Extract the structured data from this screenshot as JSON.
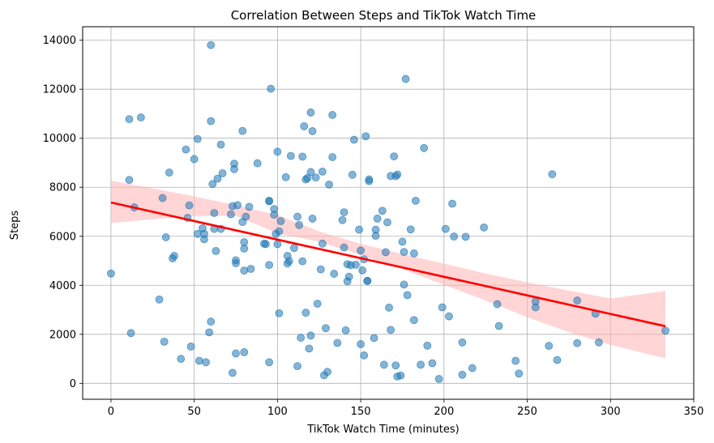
{
  "chart_data": {
    "type": "scatter",
    "title": "Correlation Between Steps and TikTok Watch Time",
    "xlabel": "TikTok Watch Time (minutes)",
    "ylabel": "Steps",
    "xlim": [
      -17,
      350
    ],
    "ylim": [
      -650,
      14550
    ],
    "xticks": [
      0,
      50,
      100,
      150,
      200,
      250,
      300,
      350
    ],
    "yticks": [
      0,
      2000,
      4000,
      6000,
      8000,
      10000,
      12000,
      14000
    ],
    "grid": true,
    "colors": {
      "points": "#1f77b4",
      "regression": "#ff0000",
      "band": "#ffb3b3"
    },
    "points": [
      [
        0,
        4480
      ],
      [
        11,
        8300
      ],
      [
        11,
        10780
      ],
      [
        12,
        2050
      ],
      [
        14,
        7180
      ],
      [
        18,
        10850
      ],
      [
        29,
        3420
      ],
      [
        31,
        7560
      ],
      [
        32,
        1700
      ],
      [
        33,
        5960
      ],
      [
        35,
        8600
      ],
      [
        37,
        5100
      ],
      [
        38,
        5200
      ],
      [
        42,
        1000
      ],
      [
        45,
        9540
      ],
      [
        46,
        6750
      ],
      [
        47,
        7260
      ],
      [
        48,
        1500
      ],
      [
        50,
        9150
      ],
      [
        52,
        6100
      ],
      [
        52,
        9970
      ],
      [
        53,
        920
      ],
      [
        55,
        6330
      ],
      [
        56,
        5880
      ],
      [
        56,
        6100
      ],
      [
        57,
        860
      ],
      [
        59,
        2080
      ],
      [
        60,
        2520
      ],
      [
        60,
        10700
      ],
      [
        60,
        13800
      ],
      [
        61,
        8130
      ],
      [
        62,
        6950
      ],
      [
        62,
        6300
      ],
      [
        63,
        5400
      ],
      [
        64,
        8350
      ],
      [
        66,
        6300
      ],
      [
        66,
        9740
      ],
      [
        67,
        8570
      ],
      [
        72,
        6900
      ],
      [
        73,
        7230
      ],
      [
        73,
        430
      ],
      [
        74,
        8960
      ],
      [
        74,
        8740
      ],
      [
        75,
        4900
      ],
      [
        75,
        5020
      ],
      [
        75,
        1220
      ],
      [
        76,
        7270
      ],
      [
        79,
        6580
      ],
      [
        79,
        10300
      ],
      [
        80,
        5500
      ],
      [
        80,
        4600
      ],
      [
        80,
        1270
      ],
      [
        80,
        5760
      ],
      [
        81,
        6800
      ],
      [
        83,
        7200
      ],
      [
        84,
        4670
      ],
      [
        88,
        8980
      ],
      [
        92,
        5700
      ],
      [
        93,
        5680
      ],
      [
        95,
        7450
      ],
      [
        95,
        7430
      ],
      [
        95,
        4830
      ],
      [
        95,
        860
      ],
      [
        96,
        12020
      ],
      [
        98,
        7110
      ],
      [
        98,
        6880
      ],
      [
        99,
        6100
      ],
      [
        100,
        9450
      ],
      [
        100,
        5680
      ],
      [
        101,
        6200
      ],
      [
        101,
        2860
      ],
      [
        102,
        6620
      ],
      [
        105,
        8410
      ],
      [
        106,
        4890
      ],
      [
        106,
        5200
      ],
      [
        107,
        4990
      ],
      [
        108,
        9280
      ],
      [
        110,
        5520
      ],
      [
        112,
        700
      ],
      [
        112,
        6800
      ],
      [
        113,
        6460
      ],
      [
        114,
        1860
      ],
      [
        115,
        9250
      ],
      [
        115,
        4980
      ],
      [
        116,
        10490
      ],
      [
        117,
        8320
      ],
      [
        117,
        2880
      ],
      [
        118,
        8380
      ],
      [
        119,
        1420
      ],
      [
        120,
        8620
      ],
      [
        120,
        11050
      ],
      [
        120,
        1950
      ],
      [
        121,
        10290
      ],
      [
        121,
        6720
      ],
      [
        123,
        8400
      ],
      [
        124,
        3250
      ],
      [
        126,
        4650
      ],
      [
        127,
        5700
      ],
      [
        127,
        8640
      ],
      [
        128,
        330
      ],
      [
        129,
        2250
      ],
      [
        130,
        470
      ],
      [
        131,
        8110
      ],
      [
        133,
        9230
      ],
      [
        133,
        10950
      ],
      [
        134,
        4470
      ],
      [
        136,
        1650
      ],
      [
        139,
        6660
      ],
      [
        140,
        6980
      ],
      [
        140,
        5540
      ],
      [
        141,
        2160
      ],
      [
        142,
        4860
      ],
      [
        142,
        4160
      ],
      [
        143,
        4350
      ],
      [
        144,
        4820
      ],
      [
        145,
        8510
      ],
      [
        146,
        9940
      ],
      [
        147,
        4840
      ],
      [
        149,
        6270
      ],
      [
        150,
        1600
      ],
      [
        150,
        5420
      ],
      [
        151,
        4610
      ],
      [
        152,
        5060
      ],
      [
        152,
        1140
      ],
      [
        153,
        10080
      ],
      [
        154,
        4180
      ],
      [
        154,
        4180
      ],
      [
        155,
        8320
      ],
      [
        155,
        8250
      ],
      [
        158,
        1850
      ],
      [
        159,
        6020
      ],
      [
        159,
        6270
      ],
      [
        160,
        6720
      ],
      [
        163,
        7040
      ],
      [
        164,
        760
      ],
      [
        165,
        5350
      ],
      [
        166,
        6570
      ],
      [
        167,
        3090
      ],
      [
        168,
        2180
      ],
      [
        168,
        8460
      ],
      [
        170,
        9260
      ],
      [
        171,
        730
      ],
      [
        171,
        8450
      ],
      [
        172,
        8520
      ],
      [
        172,
        280
      ],
      [
        174,
        320
      ],
      [
        175,
        5780
      ],
      [
        176,
        4030
      ],
      [
        176,
        5360
      ],
      [
        177,
        12420
      ],
      [
        178,
        3600
      ],
      [
        180,
        6280
      ],
      [
        182,
        2580
      ],
      [
        182,
        5300
      ],
      [
        183,
        7450
      ],
      [
        186,
        760
      ],
      [
        188,
        9600
      ],
      [
        190,
        1540
      ],
      [
        193,
        820
      ],
      [
        197,
        180
      ],
      [
        199,
        3100
      ],
      [
        201,
        6300
      ],
      [
        203,
        2730
      ],
      [
        205,
        7330
      ],
      [
        206,
        5990
      ],
      [
        211,
        350
      ],
      [
        211,
        1670
      ],
      [
        213,
        5980
      ],
      [
        217,
        620
      ],
      [
        224,
        6360
      ],
      [
        232,
        3230
      ],
      [
        233,
        2340
      ],
      [
        243,
        920
      ],
      [
        245,
        400
      ],
      [
        255,
        3100
      ],
      [
        255,
        3340
      ],
      [
        263,
        1530
      ],
      [
        265,
        8530
      ],
      [
        268,
        950
      ],
      [
        280,
        1640
      ],
      [
        280,
        3380
      ],
      [
        291,
        2840
      ],
      [
        293,
        1670
      ],
      [
        333,
        2150
      ]
    ],
    "regression": {
      "x_start": 0,
      "x_end": 333,
      "y_start": 7380,
      "y_end": 2330
    },
    "ci_band": [
      [
        0,
        6540,
        8270
      ],
      [
        25,
        6700,
        7950
      ],
      [
        50,
        6830,
        7630
      ],
      [
        75,
        6830,
        7260
      ],
      [
        100,
        6120,
        6870
      ],
      [
        125,
        5780,
        6200
      ],
      [
        150,
        5240,
        5690
      ],
      [
        175,
        4660,
        5280
      ],
      [
        200,
        4020,
        4880
      ],
      [
        225,
        3380,
        4480
      ],
      [
        250,
        2700,
        4120
      ],
      [
        275,
        2090,
        3780
      ],
      [
        300,
        1570,
        3460
      ],
      [
        333,
        1020,
        3770
      ]
    ]
  }
}
